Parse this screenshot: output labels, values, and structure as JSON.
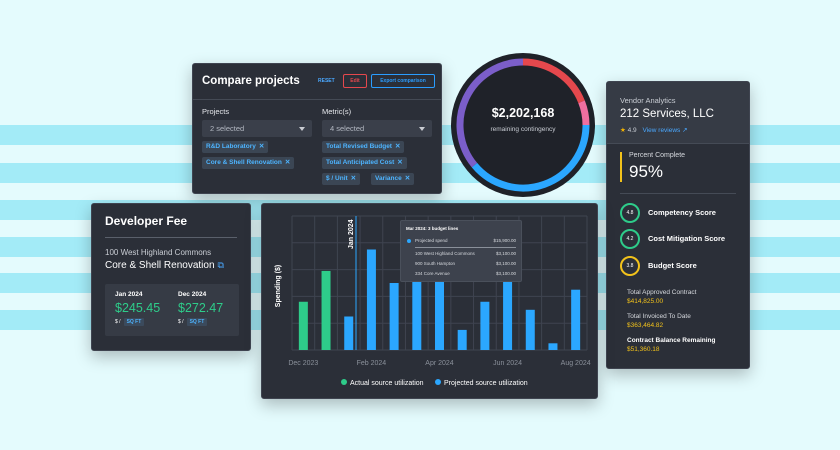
{
  "compare": {
    "title": "Compare projects",
    "reset": "RESET",
    "edit": "Edit",
    "export": "Export comparison",
    "projects_label": "Projects",
    "projects_value": "2 selected",
    "metrics_label": "Metric(s)",
    "metrics_value": "4 selected",
    "project_chips": [
      "R&D Laboratory",
      "Core & Shell Renovation"
    ],
    "metric_chips": [
      "Total Revised Budget",
      "Total Anticipated Cost",
      "$ / Unit",
      "Variance"
    ],
    "chip_remove": "✕"
  },
  "donut": {
    "value": "$2,202,168",
    "label": "remaining contingency",
    "segments": [
      {
        "name": "red",
        "fraction": 0.19,
        "color": "#e5484d"
      },
      {
        "name": "pink",
        "fraction": 0.06,
        "color": "#f06fa0"
      },
      {
        "name": "blue",
        "fraction": 0.39,
        "color": "#2ba7ff"
      },
      {
        "name": "purple",
        "fraction": 0.36,
        "color": "#7b5ec9"
      }
    ]
  },
  "vendor": {
    "title": "Vendor Analytics",
    "name": "212 Services, LLC",
    "star": "★",
    "rating": "4.9",
    "reviews": "View reviews ↗",
    "percent_label": "Percent Complete",
    "percent_value": "95%",
    "scores": [
      {
        "value": "4.8",
        "label": "Competency Score",
        "color": "#2ecc8a"
      },
      {
        "value": "4.2",
        "label": "Cost Mitigation Score",
        "color": "#2ecc8a"
      },
      {
        "value": "3.8",
        "label": "Budget Score",
        "color": "#f2c21b"
      }
    ],
    "financials": [
      {
        "label": "Total Approved Contract",
        "value": "$414,825.00",
        "bold": false
      },
      {
        "label": "Total Invoiced To Date",
        "value": "$363,464.82",
        "bold": false
      },
      {
        "label": "Contract Balance Remaining",
        "value": "$51,360.18",
        "bold": true
      }
    ]
  },
  "devfee": {
    "title": "Developer Fee",
    "address": "100 West Highland Commons",
    "project": "Core & Shell Renovation",
    "ext_icon": "⧉",
    "months": [
      {
        "date": "Jan 2024",
        "amount": "$245.45",
        "unit": "$ /",
        "basis": "SQ FT"
      },
      {
        "date": "Dec 2024",
        "amount": "$272.47",
        "unit": "$ /",
        "basis": "SQ FT"
      }
    ]
  },
  "tooltip": {
    "header": "Mar 2024: 3 budget lines",
    "rows": [
      {
        "label": "Projected spend",
        "value": "$15,900.00"
      },
      {
        "label": "100 West Highland Commons",
        "value": "$3,100.00"
      },
      {
        "label": "900 South Hampton",
        "value": "$3,100.00"
      },
      {
        "label": "334 Core Avenue",
        "value": "$3,100.00"
      }
    ]
  },
  "chart_data": {
    "type": "bar",
    "ylabel": "Spending ($)",
    "xlabel": "",
    "marker_label": "Jan 2024",
    "x_ticks": [
      "Dec 2023",
      "Feb 2024",
      "Apr 2024",
      "Jun 2024",
      "Aug 2024"
    ],
    "ylim": [
      0,
      100
    ],
    "series": [
      {
        "name": "Actual source utilization",
        "color": "#2ecc8a",
        "values": [
          36,
          59,
          0,
          0,
          0,
          0,
          0,
          0,
          0,
          0,
          0,
          0,
          0
        ]
      },
      {
        "name": "Projected source utilization",
        "color": "#2ba7ff",
        "values": [
          0,
          0,
          25,
          75,
          50,
          64,
          63,
          15,
          36,
          54,
          30,
          5,
          45
        ]
      }
    ]
  }
}
